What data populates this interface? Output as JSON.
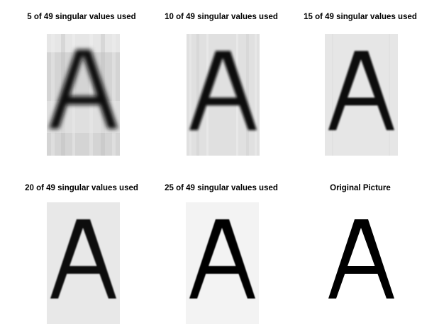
{
  "panels": [
    {
      "title": "5 of 49 singular values used"
    },
    {
      "title": "10 of 49 singular values used"
    },
    {
      "title": "15 of 49 singular values used"
    },
    {
      "title": "20 of 49 singular values used"
    },
    {
      "title": "25 of 49 singular values used"
    },
    {
      "title": "Original Picture"
    }
  ],
  "glyph": "A",
  "colors": {
    "background": "#ffffff",
    "ink": "#000000"
  }
}
